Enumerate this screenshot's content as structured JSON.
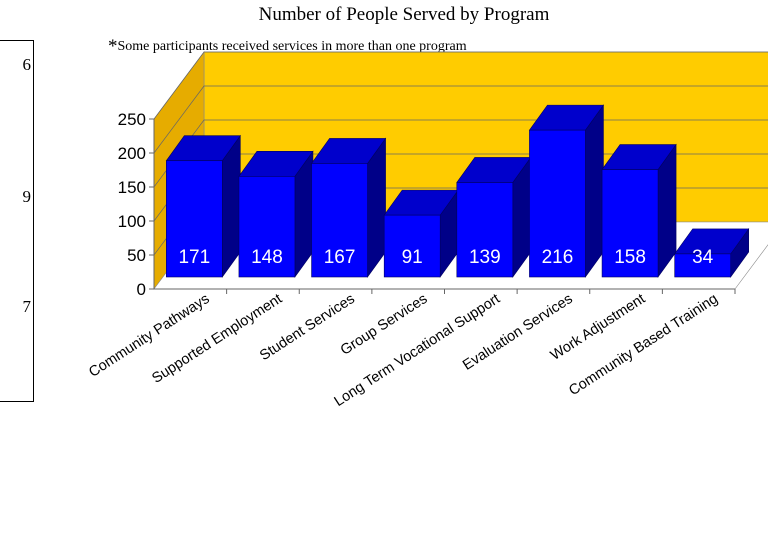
{
  "left_panel": {
    "values": [
      "6",
      "9",
      "7"
    ]
  },
  "chart_data": {
    "type": "bar",
    "title": "Number of People Served by Program",
    "subtitle_mark": "*",
    "subtitle": "Some participants received services in more than one program",
    "xlabel": "",
    "ylabel": "",
    "ylim": [
      0,
      250
    ],
    "yticks": [
      0,
      50,
      100,
      150,
      200,
      250
    ],
    "categories": [
      "Community Pathways",
      "Supported Employment",
      "Student Services",
      "Group Services",
      "Long Term Vocational Support",
      "Evaluation Services",
      "Work Adjustment",
      "Community Based Training"
    ],
    "values": [
      171,
      148,
      167,
      91,
      139,
      216,
      158,
      34
    ],
    "data_labels": [
      "171",
      "148",
      "167",
      "91",
      "139",
      "216",
      "158",
      "34"
    ],
    "style": "3d",
    "grid": true,
    "legend": "none",
    "colors": {
      "bar_front": "#0000FF",
      "bar_top": "#0000CC",
      "bar_side": "#000088",
      "back_wall": "#FFCC00",
      "side_wall": "#E6AC00",
      "floor": "#FFFFFF",
      "label": "#FFFFFF"
    }
  }
}
